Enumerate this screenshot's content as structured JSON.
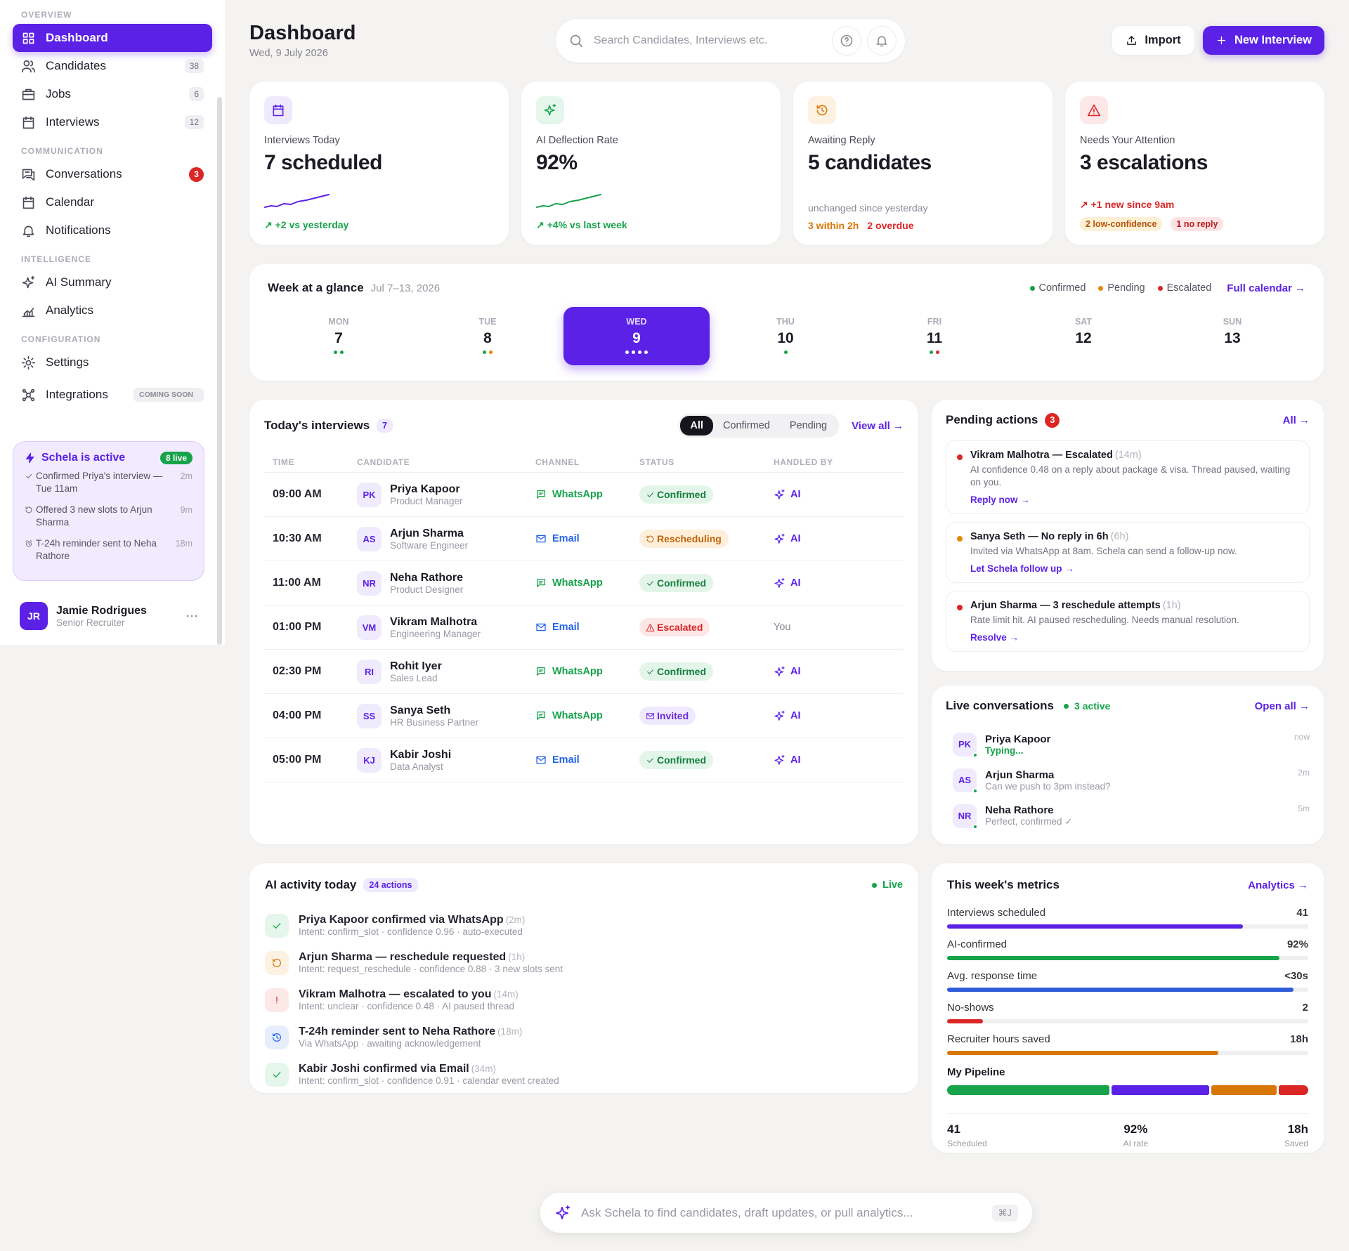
{
  "sidebar": {
    "sections": [
      {
        "title": "OVERVIEW",
        "items": [
          {
            "label": "Dashboard",
            "icon": "grid",
            "active": true
          },
          {
            "label": "Candidates",
            "icon": "users",
            "badge": "38"
          },
          {
            "label": "Jobs",
            "icon": "briefcase",
            "badge": "6"
          },
          {
            "label": "Interviews",
            "icon": "calendar",
            "badge": "12"
          }
        ]
      },
      {
        "title": "COMMUNICATION",
        "items": [
          {
            "label": "Conversations",
            "icon": "chat",
            "badge": "3",
            "badge_color": "#dc2626"
          },
          {
            "label": "Calendar",
            "icon": "calendar"
          },
          {
            "label": "Notifications",
            "icon": "bell"
          }
        ]
      },
      {
        "title": "INTELLIGENCE",
        "items": [
          {
            "label": "AI Summary",
            "icon": "sparkle"
          },
          {
            "label": "Analytics",
            "icon": "chart"
          }
        ]
      },
      {
        "title": "CONFIGURATION",
        "items": [
          {
            "label": "Settings",
            "icon": "gear"
          },
          {
            "label": "Integrations",
            "icon": "nodes",
            "tag": "COMING SOON"
          }
        ]
      }
    ],
    "status": {
      "title": "Schela is active",
      "badge": "8 live",
      "events": [
        {
          "icon": "check",
          "text": "Confirmed Priya's interview — Tue 11am",
          "time": "2m"
        },
        {
          "icon": "reschedule",
          "text": "Offered 3 new slots to Arjun Sharma",
          "time": "9m"
        },
        {
          "icon": "alarm",
          "text": "T-24h reminder sent to Neha Rathore",
          "time": "18m"
        }
      ]
    },
    "user": {
      "initials": "JR",
      "name": "Jamie Rodrigues",
      "role": "Senior Recruiter"
    }
  },
  "header": {
    "title": "Dashboard",
    "date": "Wed, 9 July 2026",
    "search": "Search Candidates, Interviews etc.",
    "import": "Import",
    "new": "New Interview"
  },
  "cards": [
    {
      "icon": "calendar",
      "color": "#5b21e6",
      "bg": "#efe9fd",
      "label": "Interviews Today",
      "value": "7 scheduled",
      "sparkline_color": "#5b21e6",
      "note": "↗ +2 vs yesterday",
      "note_color": "#16a34a"
    },
    {
      "icon": "sparkle",
      "color": "#16a34a",
      "bg": "#e5f6ec",
      "label": "AI Deflection Rate",
      "value": "92%",
      "sparkline_color": "#16a34a",
      "note": "↗ +4% vs last week",
      "note_color": "#16a34a"
    },
    {
      "icon": "history",
      "color": "#d97706",
      "bg": "#fdf1e1",
      "label": "Awaiting Reply",
      "value": "5 candidates",
      "note": "unchanged since yesterday",
      "note_color": "#8a8794",
      "tag_style": "plain",
      "tags": [
        {
          "text": "3 within 2h",
          "color": "#d97706"
        },
        {
          "text": "2 overdue",
          "color": "#dc2626"
        }
      ]
    },
    {
      "icon": "alert",
      "color": "#dc2626",
      "bg": "#fde8e8",
      "label": "Needs Your Attention",
      "value": "3 escalations",
      "note": "↗ +1 new since 9am",
      "note_color": "#dc2626",
      "tag_style": "pill",
      "tags": [
        {
          "text": "2 low-confidence",
          "color": "#b45309",
          "bg": "#fdf0d5"
        },
        {
          "text": "1 no reply",
          "color": "#b91c1c",
          "bg": "#fde4e4"
        }
      ]
    }
  ],
  "week": {
    "title": "Week at a glance",
    "range": "Jul 7–13, 2026",
    "legend": [
      {
        "label": "Confirmed",
        "color": "#16a34a"
      },
      {
        "label": "Pending",
        "color": "#e8860c"
      },
      {
        "label": "Escalated",
        "color": "#dc2626"
      }
    ],
    "link": "Full calendar →",
    "days": [
      {
        "dow": "MON",
        "day": "7",
        "dots": [
          "#16a34a",
          "#16a34a"
        ]
      },
      {
        "dow": "TUE",
        "day": "8",
        "dots": [
          "#16a34a",
          "#e8860c"
        ]
      },
      {
        "dow": "WED",
        "day": "9",
        "selected": true,
        "dots": [
          "#ffffff",
          "#ffffff",
          "#ffffff",
          "#ffffff"
        ]
      },
      {
        "dow": "THU",
        "day": "10",
        "dots": [
          "#16a34a"
        ]
      },
      {
        "dow": "FRI",
        "day": "11",
        "dots": [
          "#16a34a",
          "#dc2626"
        ]
      },
      {
        "dow": "SAT",
        "day": "12",
        "dots": []
      },
      {
        "dow": "SUN",
        "day": "13",
        "dots": []
      }
    ]
  },
  "interviews": {
    "title": "Today's interviews",
    "count": "7",
    "filters": [
      {
        "label": "All",
        "active": true
      },
      {
        "label": "Confirmed"
      },
      {
        "label": "Pending"
      }
    ],
    "link": "View all →",
    "columns": [
      "TIME",
      "CANDIDATE",
      "CHANNEL",
      "STATUS",
      "HANDLED BY"
    ],
    "rows": [
      {
        "time": "09:00 AM",
        "initials": "PK",
        "name": "Priya Kapoor",
        "role": "Product Manager",
        "channel": "WhatsApp",
        "channel_icon": "message",
        "channel_color": "#16a34a",
        "status": "Confirmed",
        "status_icon": "check",
        "status_color": "#15803d",
        "status_bg": "#e3f5e9",
        "handler": "AI",
        "handler_icon": "sparkle",
        "handler_color": "#5b21e6"
      },
      {
        "time": "10:30 AM",
        "initials": "AS",
        "name": "Arjun Sharma",
        "role": "Software Engineer",
        "channel": "Email",
        "channel_icon": "mail",
        "channel_color": "#2563eb",
        "status": "Rescheduling",
        "status_icon": "reschedule",
        "status_color": "#c2620a",
        "status_bg": "#fdefd9",
        "handler": "AI",
        "handler_icon": "sparkle",
        "handler_color": "#5b21e6"
      },
      {
        "time": "11:00 AM",
        "initials": "NR",
        "name": "Neha Rathore",
        "role": "Product Designer",
        "channel": "WhatsApp",
        "channel_icon": "message",
        "channel_color": "#16a34a",
        "status": "Confirmed",
        "status_icon": "check",
        "status_color": "#15803d",
        "status_bg": "#e3f5e9",
        "handler": "AI",
        "handler_icon": "sparkle",
        "handler_color": "#5b21e6"
      },
      {
        "time": "01:00 PM",
        "initials": "VM",
        "name": "Vikram Malhotra",
        "role": "Engineering Manager",
        "channel": "Email",
        "channel_icon": "mail",
        "channel_color": "#2563eb",
        "status": "Escalated",
        "status_icon": "alert",
        "status_color": "#dc2626",
        "status_bg": "#fde6e6",
        "handler": "You",
        "handler_color": "#8a8794"
      },
      {
        "time": "02:30 PM",
        "initials": "RI",
        "name": "Rohit Iyer",
        "role": "Sales Lead",
        "channel": "WhatsApp",
        "channel_icon": "message",
        "channel_color": "#16a34a",
        "status": "Confirmed",
        "status_icon": "check",
        "status_color": "#15803d",
        "status_bg": "#e3f5e9",
        "handler": "AI",
        "handler_icon": "sparkle",
        "handler_color": "#5b21e6"
      },
      {
        "time": "04:00 PM",
        "initials": "SS",
        "name": "Sanya Seth",
        "role": "HR Business Partner",
        "channel": "WhatsApp",
        "channel_icon": "message",
        "channel_color": "#16a34a",
        "status": "Invited",
        "status_icon": "mail",
        "status_color": "#6d28d9",
        "status_bg": "#efe9fd",
        "handler": "AI",
        "handler_icon": "sparkle",
        "handler_color": "#5b21e6"
      },
      {
        "time": "05:00 PM",
        "initials": "KJ",
        "name": "Kabir Joshi",
        "role": "Data Analyst",
        "channel": "Email",
        "channel_icon": "mail",
        "channel_color": "#2563eb",
        "status": "Confirmed",
        "status_icon": "check",
        "status_color": "#15803d",
        "status_bg": "#e3f5e9",
        "handler": "AI",
        "handler_icon": "sparkle",
        "handler_color": "#5b21e6"
      }
    ]
  },
  "pending": {
    "title": "Pending actions",
    "count": "3",
    "link": "All →",
    "items": [
      {
        "color": "#dc2626",
        "title": "Vikram Malhotra — Escalated",
        "age": "(14m)",
        "body": "AI confidence 0.48 on a reply about package & visa. Thread paused, waiting on you.",
        "link": "Reply now →"
      },
      {
        "color": "#e8860c",
        "title": "Sanya Seth — No reply in 6h",
        "age": "(6h)",
        "body": "Invited via WhatsApp at 8am. Schela can send a follow-up now.",
        "link": "Let Schela follow up →"
      },
      {
        "color": "#dc2626",
        "title": "Arjun Sharma — 3 reschedule attempts",
        "age": "(1h)",
        "body": "Rate limit hit. AI paused rescheduling. Needs manual resolution.",
        "link": "Resolve →"
      }
    ]
  },
  "live": {
    "title": "Live conversations",
    "active": "3 active",
    "link": "Open all →",
    "items": [
      {
        "initials": "PK",
        "name": "Priya Kapoor",
        "message": "Typing...",
        "message_color": "#16a34a",
        "time": "now"
      },
      {
        "initials": "AS",
        "name": "Arjun Sharma",
        "message": "Can we push to 3pm instead?",
        "time": "2m"
      },
      {
        "initials": "NR",
        "name": "Neha Rathore",
        "message": "Perfect, confirmed ✓",
        "time": "5m"
      }
    ]
  },
  "activity": {
    "title": "AI activity today",
    "badge": "24 actions",
    "live": "Live",
    "items": [
      {
        "icon": "check",
        "color": "#16a34a",
        "bg": "#e5f6ec",
        "title": "Priya Kapoor confirmed via WhatsApp",
        "age": "(2m)",
        "detail": "Intent: confirm_slot · confidence 0.96 · auto-executed"
      },
      {
        "icon": "reschedule",
        "color": "#d97706",
        "bg": "#fdf1e1",
        "title": "Arjun Sharma — reschedule requested",
        "age": "(1h)",
        "detail": "Intent: request_reschedule · confidence 0.88 · 3 new slots sent"
      },
      {
        "icon": "exclaim",
        "color": "#dc2626",
        "bg": "#fde8e8",
        "title": "Vikram Malhotra — escalated to you",
        "age": "(14m)",
        "detail": "Intent: unclear · confidence 0.48 · AI paused thread"
      },
      {
        "icon": "history",
        "color": "#2563eb",
        "bg": "#e6eefd",
        "title": "T-24h reminder sent to Neha Rathore",
        "age": "(18m)",
        "detail": "Via WhatsApp · awaiting acknowledgement"
      },
      {
        "icon": "check",
        "color": "#16a34a",
        "bg": "#e5f6ec",
        "title": "Kabir Joshi confirmed via Email",
        "age": "(34m)",
        "detail": "Intent: confirm_slot · confidence 0.91 · calendar event created"
      }
    ]
  },
  "metrics": {
    "title": "This week's metrics",
    "link": "Analytics →",
    "rows": [
      {
        "label": "Interviews scheduled",
        "value": "41",
        "color": "#5b21e6"
      },
      {
        "label": "AI-confirmed",
        "value": "92%",
        "color": "#16a34a"
      },
      {
        "label": "Avg. response time",
        "value": "<30s",
        "color": "#2f5bd8"
      },
      {
        "label": "No-shows",
        "value": "2",
        "color": "#dc2626"
      },
      {
        "label": "Recruiter hours saved",
        "value": "18h",
        "color": "#d97706"
      }
    ],
    "pipeline": {
      "title": "My Pipeline",
      "colors": [
        "#16a34a",
        "#5b21e6",
        "#d97706",
        "#dc2626"
      ],
      "summary": [
        {
          "value": "41",
          "label": "Scheduled"
        },
        {
          "value": "92%",
          "label": "AI rate"
        },
        {
          "value": "18h",
          "label": "Saved"
        }
      ]
    }
  },
  "ask": {
    "placeholder": "Ask Schela to find candidates, draft updates, or pull analytics...",
    "shortcut": "⌘J"
  }
}
